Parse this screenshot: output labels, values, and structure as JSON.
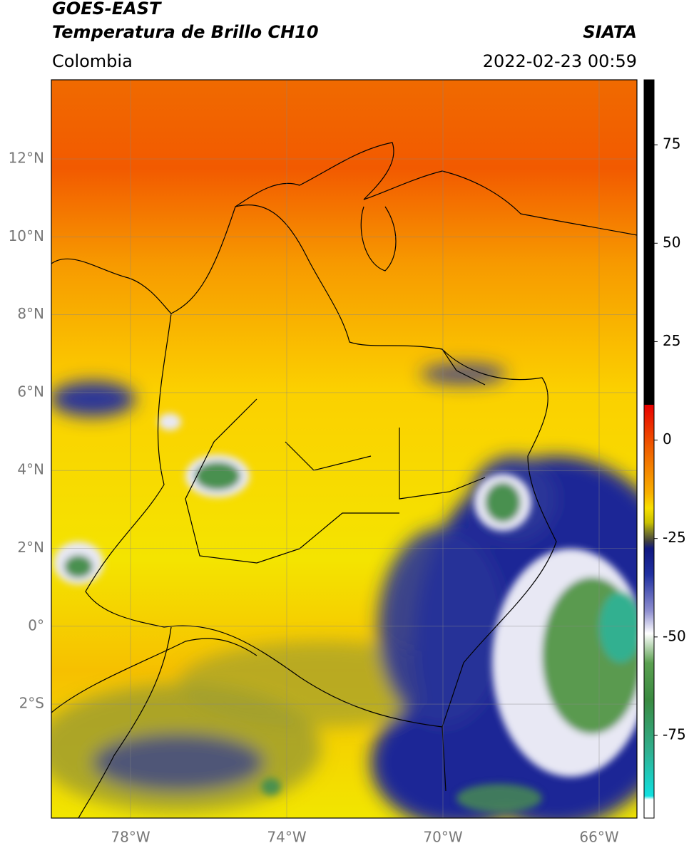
{
  "header": {
    "title": "GOES-EAST",
    "subtitle": "Temperatura de Brillo CH10",
    "region": "Colombia",
    "source": "SIATA",
    "datetime": "2022-02-23 00:59"
  },
  "map": {
    "lat_labels": [
      "12°N",
      "10°N",
      "8°N",
      "6°N",
      "4°N",
      "2°N",
      "0°",
      "2°S"
    ],
    "lon_labels": [
      "78°W",
      "74°W",
      "70°W",
      "66°W"
    ]
  },
  "colorbar": {
    "lim": [
      -96,
      91.5
    ],
    "ticks": [
      75,
      50,
      25,
      0,
      -25,
      -50,
      -75
    ]
  }
}
